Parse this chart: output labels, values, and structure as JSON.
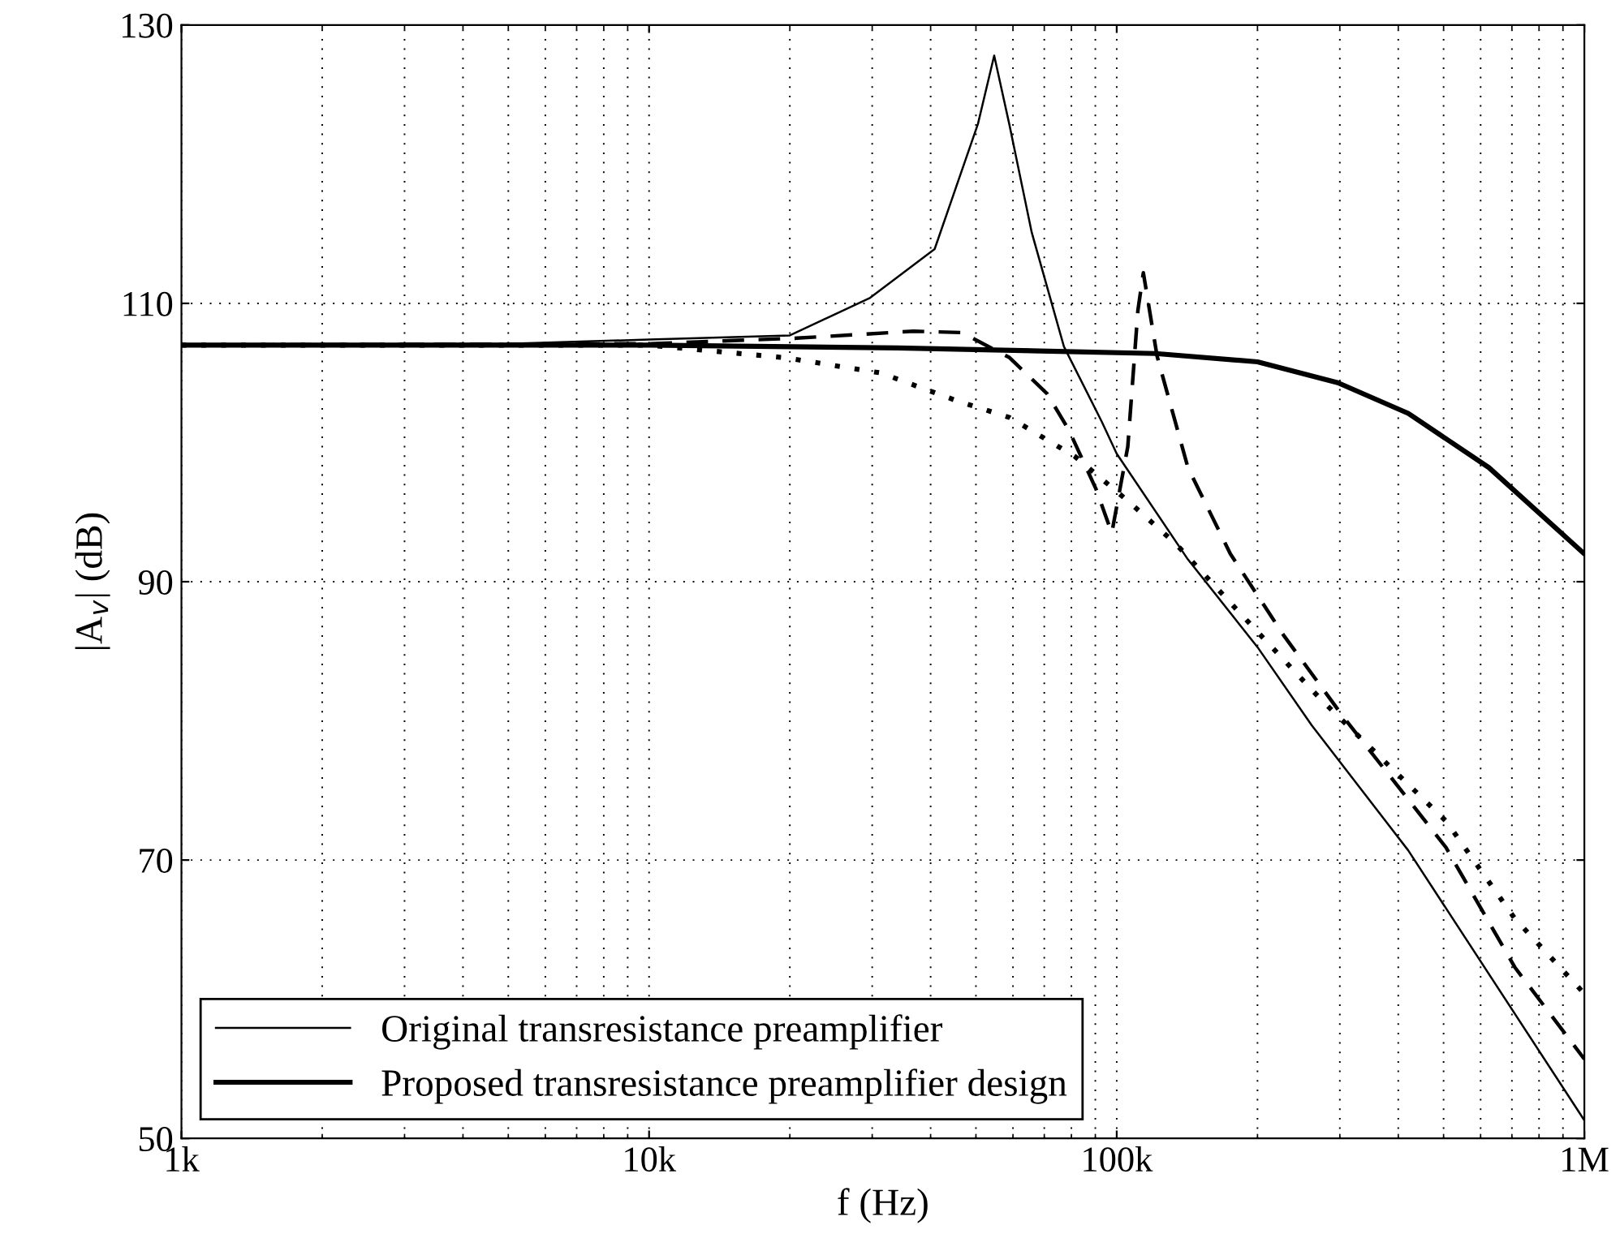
{
  "chart_data": {
    "type": "line",
    "xlabel": "f (Hz)",
    "ylabel": "|A$_{v}$| (dB)",
    "log": "x",
    "xlim": [
      1000,
      1000000
    ],
    "xticks": [
      {
        "value": 1000,
        "label": "1k"
      },
      {
        "value": 10000,
        "label": "10k"
      },
      {
        "value": 100000,
        "label": "100k"
      },
      {
        "value": 1000000,
        "label": "1M"
      }
    ],
    "ylim": [
      50,
      130
    ],
    "yticks": [
      50,
      70,
      90,
      110,
      130
    ],
    "grid": true,
    "legend": "bottom left",
    "series": [
      {
        "color": "#000000",
        "line_style": "dashed",
        "x": [
          1000,
          10000,
          20700,
          36800,
          46700,
          59000,
          71000,
          79000,
          90200,
          97600,
          105600,
          111000,
          114000,
          122000,
          142000,
          175000,
          228000,
          305000,
          506000,
          710000,
          1000000
        ],
        "values": [
          107,
          107.1,
          107.5,
          108.0,
          107.9,
          106.1,
          103.5,
          100.9,
          96.7,
          93.5,
          99.7,
          109.5,
          112.2,
          106.2,
          98.2,
          92.0,
          86.1,
          80.3,
          70.9,
          62.3,
          55.7
        ]
      },
      {
        "color": "#000000",
        "line_style": "dotted",
        "x": [
          1000,
          10000,
          19500,
          31300,
          45500,
          59000,
          81400,
          105700,
          134000,
          184000,
          274000,
          506000,
          710000,
          1000000
        ],
        "values": [
          107,
          107,
          106.1,
          105.0,
          103.0,
          101.8,
          99.0,
          95.8,
          92.7,
          87.7,
          81.5,
          72.8,
          65.8,
          60.4
        ]
      },
      {
        "name": "Original transresistance preamplifier",
        "color": "#000000",
        "line_style": "solid",
        "x": [
          1000,
          5000,
          10000,
          20000,
          29700,
          40800,
          50500,
          54700,
          58900,
          65800,
          77100,
          92900,
          100000,
          142000,
          200000,
          261000,
          420000,
          1000000
        ],
        "values": [
          107,
          107.1,
          107.4,
          107.7,
          110.4,
          113.9,
          122.9,
          127.8,
          122.9,
          115.1,
          106.9,
          101.5,
          99.2,
          91.6,
          85.3,
          79.7,
          70.7,
          51.3
        ]
      },
      {
        "name": "Proposed transresistance preamplifier design",
        "color": "#000000",
        "line_style": "solid",
        "x": [
          1000,
          10000,
          34000,
          121000,
          200000,
          297000,
          420000,
          625000,
          1000000
        ],
        "values": [
          107,
          107,
          106.8,
          106.4,
          105.8,
          104.3,
          102.1,
          98.2,
          92.0
        ]
      }
    ]
  }
}
